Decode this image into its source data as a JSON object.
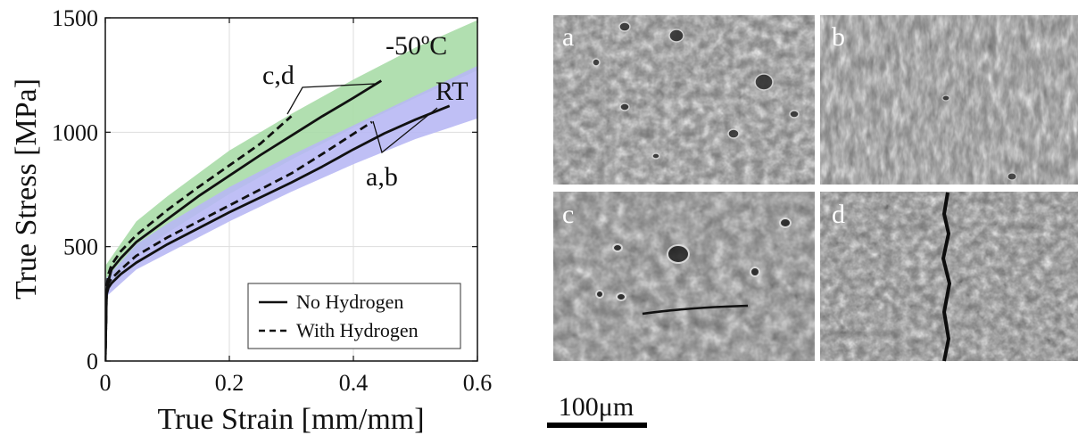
{
  "chart_data": {
    "type": "line",
    "xlabel": "True Strain [mm/mm]",
    "ylabel": "True Stress [MPa]",
    "xlim": [
      0,
      0.6
    ],
    "ylim": [
      0,
      1500
    ],
    "xticks": [
      0,
      0.2,
      0.4,
      0.6
    ],
    "xtick_labels": [
      "0",
      "0.2",
      "0.4",
      "0.6"
    ],
    "yticks": [
      0,
      500,
      1000,
      1500
    ],
    "ytick_labels": [
      "0",
      "500",
      "1000",
      "1500"
    ],
    "grid": true,
    "legend_position": "bottom-right",
    "legend": [
      {
        "label": "No Hydrogen",
        "style": "solid"
      },
      {
        "label": "With Hydrogen",
        "style": "dashed"
      }
    ],
    "series": [
      {
        "group": "-50ºC",
        "hydrogen": false,
        "style": "solid",
        "x": [
          0,
          0.002,
          0.005,
          0.01,
          0.025,
          0.05,
          0.1,
          0.15,
          0.2,
          0.25,
          0.3,
          0.35,
          0.4,
          0.445
        ],
        "y": [
          0,
          300,
          350,
          400,
          450,
          520,
          620,
          720,
          810,
          900,
          985,
          1070,
          1150,
          1225
        ]
      },
      {
        "group": "-50ºC",
        "hydrogen": true,
        "style": "dashed",
        "x": [
          0,
          0.002,
          0.005,
          0.01,
          0.025,
          0.05,
          0.1,
          0.15,
          0.2,
          0.25,
          0.3
        ],
        "y": [
          0,
          320,
          380,
          420,
          480,
          550,
          660,
          760,
          855,
          950,
          1070
        ]
      },
      {
        "group": "RT",
        "hydrogen": false,
        "style": "solid",
        "x": [
          0,
          0.002,
          0.005,
          0.01,
          0.025,
          0.05,
          0.1,
          0.15,
          0.2,
          0.25,
          0.3,
          0.35,
          0.4,
          0.45,
          0.5,
          0.555
        ],
        "y": [
          0,
          290,
          320,
          340,
          380,
          430,
          510,
          580,
          650,
          715,
          780,
          850,
          925,
          995,
          1055,
          1115
        ]
      },
      {
        "group": "RT",
        "hydrogen": true,
        "style": "dashed",
        "x": [
          0,
          0.002,
          0.005,
          0.01,
          0.025,
          0.05,
          0.1,
          0.15,
          0.2,
          0.25,
          0.3,
          0.35,
          0.43
        ],
        "y": [
          0,
          300,
          340,
          360,
          400,
          460,
          540,
          610,
          680,
          750,
          820,
          905,
          1045
        ]
      }
    ],
    "bands": [
      {
        "label": "-50ºC",
        "color": "#a9dba7",
        "x": [
          0.001,
          0.05,
          0.1,
          0.2,
          0.3,
          0.4,
          0.5,
          0.6
        ],
        "lower": [
          310,
          470,
          560,
          730,
          880,
          1020,
          1150,
          1270
        ],
        "upper": [
          420,
          610,
          720,
          920,
          1080,
          1230,
          1370,
          1490
        ]
      },
      {
        "label": "RT",
        "color": "#b8b8f4",
        "x": [
          0.001,
          0.05,
          0.1,
          0.2,
          0.3,
          0.4,
          0.5,
          0.6
        ],
        "lower": [
          280,
          400,
          470,
          610,
          740,
          860,
          970,
          1060
        ],
        "upper": [
          360,
          510,
          600,
          760,
          900,
          1030,
          1160,
          1290
        ]
      }
    ],
    "annotations": [
      "-50ºC",
      "RT",
      "c,d",
      "a,b"
    ]
  },
  "micrographs": {
    "panels": [
      "a",
      "b",
      "c",
      "d"
    ],
    "scale_bar": "100μm"
  },
  "colors": {
    "band_cold": "#a9dba7",
    "band_rt": "#b8b8f4",
    "line": "#111111"
  }
}
